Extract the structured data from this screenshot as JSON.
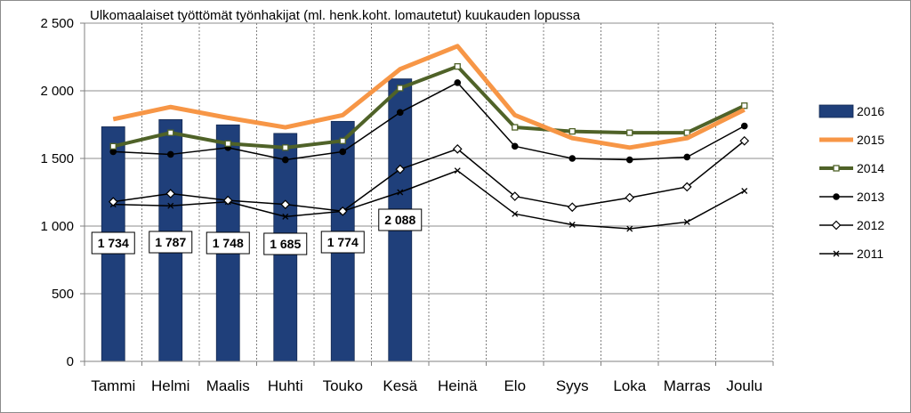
{
  "chart_data": {
    "type": "bar+line",
    "title": "Ulkomaalaiset työttömät työnhakijat (ml. henk.koht. lomautetut) kuukauden lopussa",
    "xlabel": "",
    "ylabel": "",
    "ylim": [
      0,
      2500
    ],
    "yticks": [
      0,
      500,
      1000,
      1500,
      2000,
      2500
    ],
    "ytick_labels": [
      "0",
      "500",
      "1 000",
      "1 500",
      "2 000",
      "2 500"
    ],
    "grid": "dotted vertical, solid horizontal",
    "legend_position": "right",
    "categories": [
      "Tammi",
      "Helmi",
      "Maalis",
      "Huhti",
      "Touko",
      "Kesä",
      "Heinä",
      "Elo",
      "Syys",
      "Loka",
      "Marras",
      "Joulu"
    ],
    "series": [
      {
        "name": "2016",
        "kind": "bar",
        "color": "#1f3f7a",
        "values": [
          1734,
          1787,
          1748,
          1685,
          1774,
          2088,
          null,
          null,
          null,
          null,
          null,
          null
        ],
        "data_labels": [
          "1 734",
          "1 787",
          "1 748",
          "1 685",
          "1 774",
          "2 088"
        ]
      },
      {
        "name": "2015",
        "kind": "line",
        "color": "#f79646",
        "marker": "none",
        "values": [
          1790,
          1880,
          1800,
          1730,
          1820,
          2160,
          2330,
          1820,
          1650,
          1580,
          1650,
          1860
        ]
      },
      {
        "name": "2014",
        "kind": "line",
        "color": "#4f6228",
        "marker": "square-open",
        "values": [
          1590,
          1690,
          1610,
          1580,
          1630,
          2020,
          2180,
          1730,
          1700,
          1690,
          1690,
          1890
        ]
      },
      {
        "name": "2013",
        "kind": "line",
        "color": "#000000",
        "marker": "circle-filled",
        "values": [
          1550,
          1530,
          1580,
          1490,
          1550,
          1840,
          2060,
          1590,
          1500,
          1490,
          1510,
          1740
        ]
      },
      {
        "name": "2012",
        "kind": "line",
        "color": "#000000",
        "marker": "diamond-open",
        "values": [
          1180,
          1240,
          1190,
          1160,
          1110,
          1420,
          1570,
          1220,
          1140,
          1210,
          1290,
          1630
        ]
      },
      {
        "name": "2011",
        "kind": "line",
        "color": "#000000",
        "marker": "x",
        "values": [
          1160,
          1150,
          1180,
          1070,
          1110,
          1250,
          1410,
          1090,
          1010,
          980,
          1030,
          1260
        ]
      }
    ]
  }
}
